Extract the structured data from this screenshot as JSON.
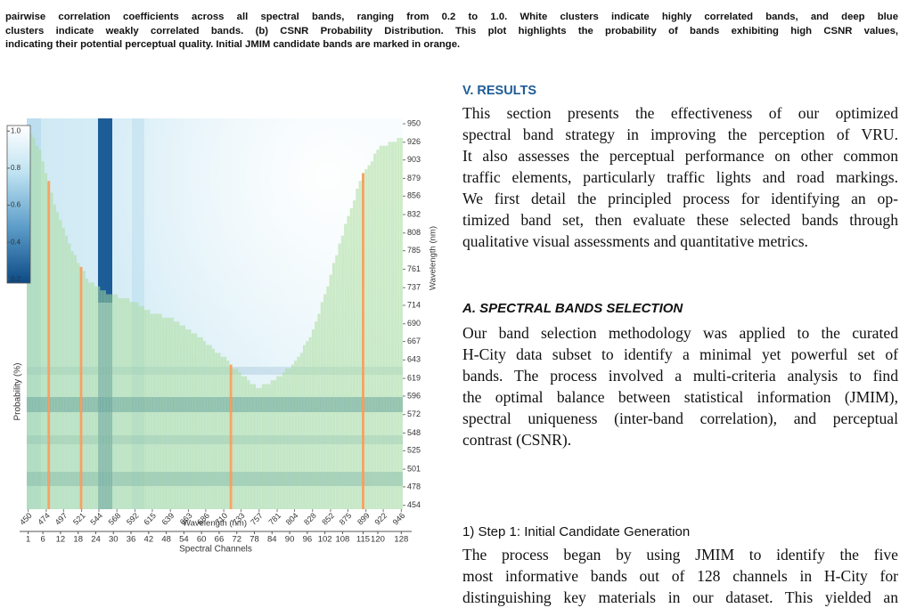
{
  "caption": {
    "lines": [
      "pairwise correlation coefficients across all spectral bands, ranging from 0.2 to 1.0. White clusters indicate highly correlated bands, and deep blue",
      "clusters indicate weakly correlated bands. (b) CSNR Probability Distribution. This plot highlights the probability of bands exhibiting high CSNR values,",
      "indicating their potential perceptual quality. Initial JMIM candidate bands are marked in orange."
    ]
  },
  "section": {
    "title": "V. RESULTS",
    "lines": [
      "This section presents the effectiveness of our optimized",
      "spectral band strategy in improving the perception of VRU.",
      "It also assesses the perceptual performance on other common",
      "traffic elements, particularly traffic lights and road markings.",
      "We first detail the principled process for identifying an op-",
      "timized band set, then evaluate these selected bands through",
      "qualitative visual assessments and quantitative metrics."
    ]
  },
  "subsection": {
    "title": "A. SPECTRAL BANDS SELECTION",
    "lines": [
      "Our band selection methodology was applied to the curated",
      "H-City data subset to identify a minimal yet powerful set of",
      "bands. The process involved a multi-criteria analysis to find",
      "the optimal balance between statistical information (JMIM),",
      "spectral uniqueness (inter-band correlation), and perceptual",
      "contrast (CSNR)."
    ]
  },
  "step": {
    "title": "1) Step 1: Initial Candidate Generation",
    "lines": [
      "The process began by using JMIM to identify the five",
      "most informative bands out of 128 channels in H-City for",
      "distinguishing key materials in our dataset. This yielded an"
    ]
  },
  "chart_data": {
    "type": "bar",
    "y_label": "Probability (%)",
    "x_label": "Spectral Channels",
    "x2_label": "Wavelength (nm)",
    "y2_label": "Wavelength (nm)",
    "x": [
      1,
      2,
      3,
      4,
      5,
      6,
      7,
      8,
      9,
      10,
      11,
      12,
      13,
      14,
      15,
      16,
      17,
      18,
      19,
      20,
      21,
      22,
      23,
      24,
      25,
      26,
      27,
      28,
      29,
      30,
      31,
      32,
      33,
      34,
      35,
      36,
      37,
      38,
      39,
      40,
      41,
      42,
      43,
      44,
      45,
      46,
      47,
      48,
      49,
      50,
      51,
      52,
      53,
      54,
      55,
      56,
      57,
      58,
      59,
      60,
      61,
      62,
      63,
      64,
      65,
      66,
      67,
      68,
      69,
      70,
      71,
      72,
      73,
      74,
      75,
      76,
      77,
      78,
      79,
      80,
      81,
      82,
      83,
      84,
      85,
      86,
      87,
      88,
      89,
      90,
      91,
      92,
      93,
      94,
      95,
      96,
      97,
      98,
      99,
      100,
      101,
      102,
      103,
      104,
      105,
      106,
      107,
      108,
      109,
      110,
      111,
      112,
      113,
      114,
      115,
      116,
      117,
      118,
      119,
      120,
      121,
      122,
      123,
      124,
      125,
      126,
      127,
      128
    ],
    "values": [
      0.97,
      0.96,
      0.95,
      0.93,
      0.92,
      0.89,
      0.86,
      0.84,
      0.81,
      0.78,
      0.76,
      0.74,
      0.72,
      0.7,
      0.68,
      0.66,
      0.65,
      0.63,
      0.62,
      0.61,
      0.59,
      0.58,
      0.58,
      0.57,
      0.57,
      0.56,
      0.56,
      0.55,
      0.55,
      0.55,
      0.55,
      0.54,
      0.54,
      0.54,
      0.54,
      0.53,
      0.53,
      0.53,
      0.52,
      0.52,
      0.51,
      0.51,
      0.5,
      0.5,
      0.5,
      0.5,
      0.49,
      0.49,
      0.49,
      0.49,
      0.48,
      0.48,
      0.47,
      0.47,
      0.46,
      0.46,
      0.45,
      0.45,
      0.44,
      0.44,
      0.43,
      0.42,
      0.42,
      0.41,
      0.4,
      0.4,
      0.39,
      0.39,
      0.38,
      0.37,
      0.36,
      0.36,
      0.35,
      0.34,
      0.34,
      0.33,
      0.32,
      0.32,
      0.31,
      0.31,
      0.32,
      0.32,
      0.32,
      0.33,
      0.33,
      0.34,
      0.34,
      0.35,
      0.36,
      0.36,
      0.37,
      0.38,
      0.39,
      0.4,
      0.42,
      0.43,
      0.44,
      0.46,
      0.48,
      0.5,
      0.53,
      0.55,
      0.57,
      0.6,
      0.63,
      0.65,
      0.68,
      0.7,
      0.73,
      0.75,
      0.77,
      0.79,
      0.82,
      0.84,
      0.86,
      0.87,
      0.88,
      0.89,
      0.91,
      0.92,
      0.93,
      0.93,
      0.93,
      0.94,
      0.94,
      0.94,
      0.95,
      0.95
    ],
    "color": "#a9dc9a",
    "highlight_x": [
      8,
      19,
      70,
      115
    ],
    "highlight_color": "#f4a05c",
    "xlim": [
      1,
      128
    ],
    "xticks": [
      1,
      6,
      12,
      18,
      24,
      30,
      36,
      42,
      48,
      54,
      60,
      66,
      72,
      78,
      84,
      90,
      96,
      102,
      108,
      115,
      120,
      128
    ],
    "ylim": [
      0,
      1
    ],
    "x2lim": [
      450,
      946
    ],
    "x2ticks": [
      450,
      474,
      497,
      521,
      544,
      568,
      592,
      615,
      639,
      663,
      686,
      710,
      733,
      757,
      781,
      804,
      828,
      852,
      875,
      899,
      922,
      946
    ],
    "y2lim": [
      449,
      957
    ],
    "y2ticks": [
      950,
      926,
      903,
      879,
      856,
      832,
      808,
      785,
      761,
      737,
      714,
      690,
      667,
      643,
      619,
      596,
      572,
      548,
      525,
      501,
      478,
      454
    ],
    "colorbar": {
      "lim": [
        0.18,
        1.03
      ],
      "ticks": [
        {
          "value": 1,
          "label": "1.0"
        },
        0.8,
        0.6,
        0.4,
        0.2
      ]
    }
  }
}
